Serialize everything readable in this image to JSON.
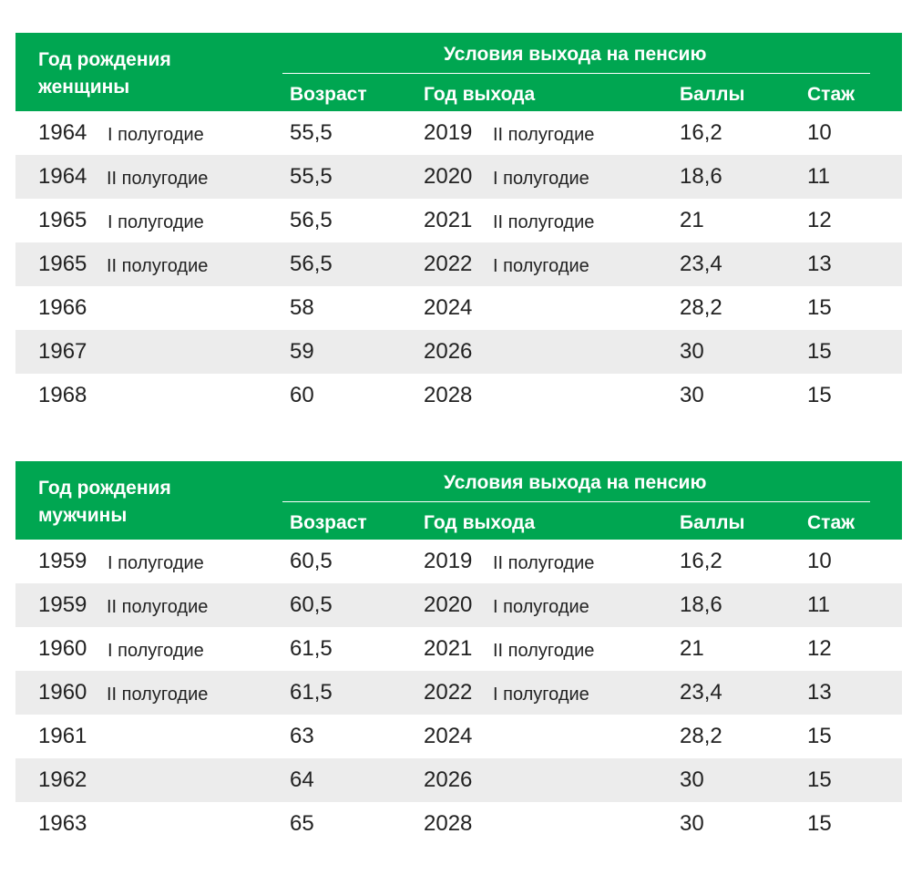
{
  "tables": [
    {
      "header": {
        "birth": "Год рождения",
        "who": "женщины",
        "group": "Условия выхода на пенсию",
        "columns": [
          "Возраст",
          "Год выхода",
          "Баллы",
          "Стаж"
        ]
      },
      "rows": [
        {
          "year": "1964",
          "half": "I полугодие",
          "age": "55,5",
          "exit": "2019",
          "exit_half": "II полугодие",
          "points": "16,2",
          "exp": "10"
        },
        {
          "year": "1964",
          "half": "II полугодие",
          "age": "55,5",
          "exit": "2020",
          "exit_half": "I полугодие",
          "points": "18,6",
          "exp": "11"
        },
        {
          "year": "1965",
          "half": "I полугодие",
          "age": "56,5",
          "exit": "2021",
          "exit_half": "II полугодие",
          "points": "21",
          "exp": "12"
        },
        {
          "year": "1965",
          "half": "II полугодие",
          "age": "56,5",
          "exit": "2022",
          "exit_half": "I полугодие",
          "points": "23,4",
          "exp": "13"
        },
        {
          "year": "1966",
          "age": "58",
          "exit": "2024",
          "points": "28,2",
          "exp": "15"
        },
        {
          "year": "1967",
          "age": "59",
          "exit": "2026",
          "points": "30",
          "exp": "15"
        },
        {
          "year": "1968",
          "age": "60",
          "exit": "2028",
          "points": "30",
          "exp": "15"
        }
      ]
    },
    {
      "header": {
        "birth": "Год рождения",
        "who": "мужчины",
        "group": "Условия выхода на пенсию",
        "columns": [
          "Возраст",
          "Год выхода",
          "Баллы",
          "Стаж"
        ]
      },
      "rows": [
        {
          "year": "1959",
          "half": "I полугодие",
          "age": "60,5",
          "exit": "2019",
          "exit_half": "II полугодие",
          "points": "16,2",
          "exp": "10"
        },
        {
          "year": "1959",
          "half": "II полугодие",
          "age": "60,5",
          "exit": "2020",
          "exit_half": "I полугодие",
          "points": "18,6",
          "exp": "11"
        },
        {
          "year": "1960",
          "half": "I полугодие",
          "age": "61,5",
          "exit": "2021",
          "exit_half": "II полугодие",
          "points": "21",
          "exp": "12"
        },
        {
          "year": "1960",
          "half": "II полугодие",
          "age": "61,5",
          "exit": "2022",
          "exit_half": "I полугодие",
          "points": "23,4",
          "exp": "13"
        },
        {
          "year": "1961",
          "age": "63",
          "exit": "2024",
          "points": "28,2",
          "exp": "15"
        },
        {
          "year": "1962",
          "age": "64",
          "exit": "2026",
          "points": "30",
          "exp": "15"
        },
        {
          "year": "1963",
          "age": "65",
          "exit": "2028",
          "points": "30",
          "exp": "15"
        }
      ]
    }
  ]
}
